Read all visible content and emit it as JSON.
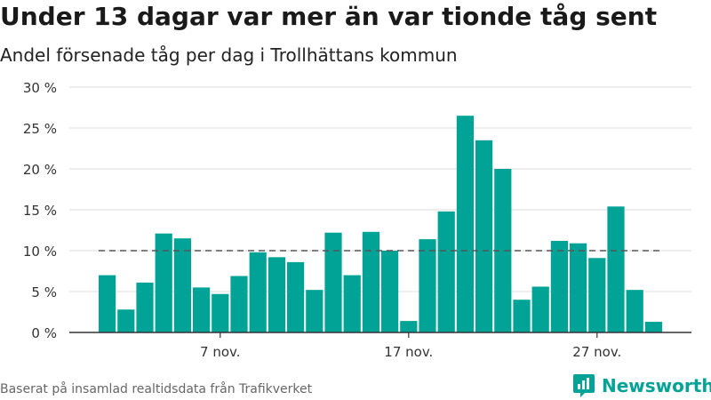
{
  "title": "Under 13 dagar var mer än var tionde tåg sent",
  "subtitle": "Andel försenade tåg per dag i Trollhättans kommun",
  "source": "Baserat på insamlad realtidsdata från Trafikverket",
  "brand": "Newsworthy",
  "colors": {
    "bar": "#00a396",
    "reference_line": "#555555",
    "grid": "#dddddd",
    "brand": "#00a396"
  },
  "chart_data": {
    "type": "bar",
    "xlabel": "",
    "ylabel": "",
    "ylim": [
      0,
      30
    ],
    "y_ticks": [
      0,
      5,
      10,
      15,
      20,
      25,
      30
    ],
    "y_tick_labels": [
      "0 %",
      "5 %",
      "10 %",
      "15 %",
      "20 %",
      "25 %",
      "30 %"
    ],
    "x_tick_labels": [
      {
        "day": 7,
        "label": "7 nov."
      },
      {
        "day": 17,
        "label": "17 nov."
      },
      {
        "day": 27,
        "label": "27 nov."
      }
    ],
    "days": [
      1,
      2,
      3,
      4,
      5,
      6,
      7,
      8,
      9,
      10,
      11,
      12,
      13,
      14,
      15,
      16,
      17,
      18,
      19,
      20,
      21,
      22,
      23,
      24,
      25,
      26,
      27,
      28,
      29,
      30
    ],
    "values": [
      7.0,
      2.8,
      6.1,
      12.1,
      11.5,
      5.5,
      4.7,
      6.9,
      9.8,
      9.2,
      8.6,
      5.2,
      12.2,
      7.0,
      12.3,
      10.0,
      1.4,
      11.4,
      14.8,
      26.5,
      23.5,
      20.0,
      4.0,
      5.6,
      11.2,
      10.9,
      9.1,
      15.4,
      5.2,
      1.3
    ],
    "reference_line": 10,
    "grid": true,
    "legend": "none"
  }
}
